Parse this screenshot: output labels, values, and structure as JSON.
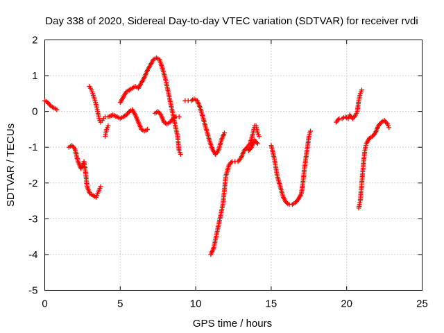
{
  "chart_data": {
    "type": "scatter",
    "title": "Day 338 of 2020, Sidereal Day-to-day VTEC variation (SDTVAR) for receiver rvdi",
    "xlabel": "GPS time / hours",
    "ylabel": "SDTVAR / TECUs",
    "xlim": [
      0,
      25
    ],
    "ylim": [
      -5,
      2
    ],
    "xticks": [
      0,
      5,
      10,
      15,
      20,
      25
    ],
    "yticks": [
      -5,
      -4,
      -3,
      -2,
      -1,
      0,
      1,
      2
    ],
    "xtick_labels": [
      "0",
      "5",
      "10",
      "15",
      "20",
      "25"
    ],
    "ytick_labels": [
      "-5",
      "-4",
      "-3",
      "-2",
      "-1",
      "0",
      "1",
      "2"
    ],
    "grid": true,
    "marker": "+",
    "color": "#ff0000",
    "series": [
      {
        "name": "s1",
        "points": [
          [
            0,
            0.3
          ],
          [
            0.2,
            0.25
          ],
          [
            0.4,
            0.15
          ],
          [
            0.6,
            0.1
          ],
          [
            0.8,
            0.05
          ]
        ]
      },
      {
        "name": "s2",
        "points": [
          [
            1.6,
            -1.0
          ],
          [
            1.8,
            -0.95
          ],
          [
            2.0,
            -1.05
          ],
          [
            2.2,
            -1.4
          ],
          [
            2.4,
            -1.6
          ],
          [
            2.5,
            -1.5
          ],
          [
            2.6,
            -1.4
          ],
          [
            2.7,
            -1.7
          ],
          [
            2.8,
            -2.1
          ],
          [
            3.0,
            -2.3
          ],
          [
            3.2,
            -2.35
          ],
          [
            3.4,
            -2.4
          ],
          [
            3.5,
            -2.3
          ],
          [
            3.6,
            -2.2
          ],
          [
            3.7,
            -2.1
          ]
        ]
      },
      {
        "name": "s3",
        "points": [
          [
            2.95,
            0.7
          ],
          [
            3.1,
            0.6
          ],
          [
            3.25,
            0.4
          ],
          [
            3.4,
            0.2
          ],
          [
            3.5,
            0.0
          ],
          [
            3.6,
            -0.2
          ],
          [
            3.7,
            -0.3
          ],
          [
            3.8,
            -0.25
          ],
          [
            3.9,
            -0.2
          ],
          [
            4.0,
            -0.15
          ],
          [
            4.2,
            -0.15
          ],
          [
            4.5,
            -0.1
          ],
          [
            4.8,
            -0.15
          ],
          [
            5.0,
            -0.2
          ],
          [
            5.2,
            -0.15
          ],
          [
            5.4,
            -0.1
          ],
          [
            5.6,
            0.0
          ],
          [
            5.8,
            0.05
          ],
          [
            6.0,
            -0.1
          ],
          [
            6.2,
            -0.3
          ],
          [
            6.4,
            -0.5
          ],
          [
            6.6,
            -0.55
          ],
          [
            6.8,
            -0.5
          ]
        ]
      },
      {
        "name": "s4",
        "points": [
          [
            4.0,
            -0.7
          ],
          [
            4.1,
            -0.5
          ],
          [
            4.2,
            -0.4
          ]
        ]
      },
      {
        "name": "s5",
        "points": [
          [
            5.0,
            0.25
          ],
          [
            5.2,
            0.4
          ],
          [
            5.4,
            0.55
          ],
          [
            5.6,
            0.6
          ],
          [
            5.8,
            0.65
          ],
          [
            6.0,
            0.7
          ],
          [
            6.2,
            0.65
          ],
          [
            6.4,
            0.8
          ],
          [
            6.6,
            0.95
          ],
          [
            6.8,
            1.15
          ],
          [
            7.0,
            1.3
          ],
          [
            7.2,
            1.45
          ],
          [
            7.4,
            1.5
          ],
          [
            7.6,
            1.45
          ],
          [
            7.8,
            1.2
          ],
          [
            8.0,
            0.9
          ],
          [
            8.2,
            0.5
          ],
          [
            8.4,
            0.1
          ],
          [
            8.6,
            -0.3
          ],
          [
            8.8,
            -0.7
          ],
          [
            8.9,
            -1.1
          ],
          [
            9.0,
            -1.2
          ]
        ]
      },
      {
        "name": "s6",
        "points": [
          [
            7.3,
            -0.05
          ],
          [
            7.5,
            0.0
          ],
          [
            7.7,
            -0.1
          ],
          [
            7.9,
            -0.3
          ],
          [
            8.1,
            -0.35
          ],
          [
            8.3,
            -0.3
          ],
          [
            8.5,
            -0.2
          ],
          [
            8.7,
            -0.15
          ],
          [
            8.9,
            -0.15
          ]
        ]
      },
      {
        "name": "s7",
        "points": [
          [
            9.3,
            0.3
          ],
          [
            9.5,
            0.3
          ],
          [
            9.7,
            0.3
          ],
          [
            9.9,
            0.35
          ],
          [
            10.1,
            0.3
          ],
          [
            10.3,
            0.1
          ],
          [
            10.5,
            -0.2
          ],
          [
            10.7,
            -0.5
          ],
          [
            10.9,
            -0.8
          ],
          [
            11.1,
            -1.05
          ],
          [
            11.3,
            -1.2
          ],
          [
            11.5,
            -1.1
          ],
          [
            11.7,
            -0.8
          ],
          [
            11.9,
            -0.6
          ]
        ]
      },
      {
        "name": "s8",
        "points": [
          [
            11.0,
            -4.0
          ],
          [
            11.2,
            -3.8
          ],
          [
            11.4,
            -3.4
          ],
          [
            11.6,
            -3.0
          ],
          [
            11.8,
            -2.6
          ],
          [
            11.9,
            -2.2
          ],
          [
            12.0,
            -1.8
          ],
          [
            12.2,
            -1.5
          ],
          [
            12.4,
            -1.4
          ],
          [
            12.6,
            -1.4
          ],
          [
            12.8,
            -1.4
          ],
          [
            13.0,
            -1.3
          ],
          [
            13.2,
            -1.1
          ],
          [
            13.4,
            -1.0
          ],
          [
            13.6,
            -0.9
          ],
          [
            13.8,
            -0.6
          ],
          [
            13.9,
            -0.4
          ],
          [
            14.0,
            -0.4
          ],
          [
            14.1,
            -0.6
          ],
          [
            14.2,
            -0.7
          ]
        ]
      },
      {
        "name": "s9",
        "points": [
          [
            13.5,
            -1.1
          ],
          [
            13.7,
            -1.0
          ],
          [
            13.9,
            -0.8
          ],
          [
            14.1,
            -0.9
          ]
        ]
      },
      {
        "name": "s10",
        "points": [
          [
            15.0,
            -0.95
          ],
          [
            15.2,
            -1.3
          ],
          [
            15.4,
            -1.8
          ],
          [
            15.6,
            -2.1
          ],
          [
            15.8,
            -2.4
          ],
          [
            16.0,
            -2.55
          ],
          [
            16.2,
            -2.6
          ],
          [
            16.4,
            -2.6
          ],
          [
            16.6,
            -2.55
          ],
          [
            16.8,
            -2.45
          ],
          [
            17.0,
            -2.3
          ],
          [
            17.1,
            -2.0
          ],
          [
            17.2,
            -1.6
          ],
          [
            17.3,
            -1.3
          ],
          [
            17.4,
            -1.0
          ],
          [
            17.5,
            -0.7
          ],
          [
            17.6,
            -0.55
          ]
        ]
      },
      {
        "name": "s11",
        "points": [
          [
            19.3,
            -0.3
          ],
          [
            19.5,
            -0.2
          ],
          [
            19.7,
            -0.2
          ],
          [
            19.9,
            -0.15
          ],
          [
            20.1,
            -0.2
          ],
          [
            20.2,
            -0.1
          ],
          [
            20.4,
            -0.2
          ],
          [
            20.6,
            -0.1
          ],
          [
            20.7,
            0.0
          ],
          [
            20.8,
            0.3
          ],
          [
            20.9,
            0.5
          ],
          [
            21.0,
            0.6
          ]
        ]
      },
      {
        "name": "s12",
        "points": [
          [
            20.8,
            -2.7
          ],
          [
            20.9,
            -2.5
          ],
          [
            21.0,
            -2.0
          ],
          [
            21.1,
            -1.5
          ],
          [
            21.2,
            -1.1
          ],
          [
            21.3,
            -0.9
          ],
          [
            21.5,
            -0.75
          ],
          [
            21.7,
            -0.7
          ],
          [
            21.9,
            -0.6
          ],
          [
            22.1,
            -0.4
          ],
          [
            22.3,
            -0.3
          ],
          [
            22.5,
            -0.25
          ],
          [
            22.7,
            -0.35
          ],
          [
            22.8,
            -0.45
          ]
        ]
      }
    ]
  }
}
